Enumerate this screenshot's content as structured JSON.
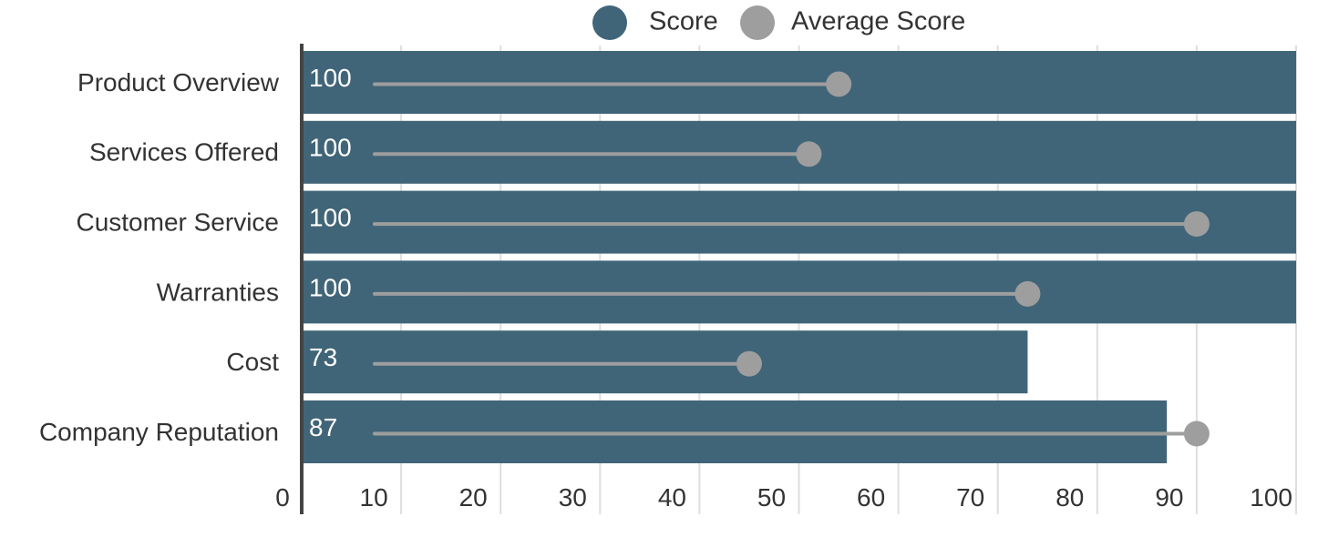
{
  "chart_data": {
    "type": "bar",
    "orientation": "horizontal",
    "categories": [
      "Product Overview",
      "Services Offered",
      "Customer Service",
      "Warranties",
      "Cost",
      "Company Reputation"
    ],
    "series": [
      {
        "name": "Score",
        "values": [
          100,
          100,
          100,
          100,
          73,
          87
        ],
        "color": "#416578",
        "data_labels": [
          "100",
          "100",
          "100",
          "100",
          "73",
          "87"
        ]
      },
      {
        "name": "Average Score",
        "values": [
          54,
          51,
          90,
          73,
          45,
          90
        ],
        "color": "#9e9e9e",
        "marker": "circle-lollipop"
      }
    ],
    "xlim": [
      0,
      100
    ],
    "xticks": [
      0,
      10,
      20,
      30,
      40,
      50,
      60,
      70,
      80,
      90,
      100
    ],
    "grid": "vertical",
    "legend_position": "top-center",
    "title": "",
    "xlabel": "",
    "ylabel": ""
  }
}
